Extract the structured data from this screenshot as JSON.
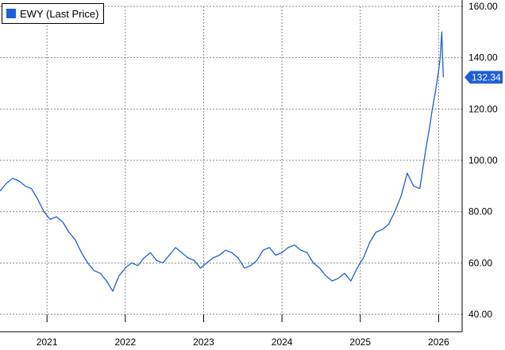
{
  "legend": {
    "label": "EWY (Last Price)",
    "color": "#1f5fd6"
  },
  "last_price": {
    "label": "132.34",
    "value": 132.34,
    "color": "#1f5fd6"
  },
  "chart_data": {
    "type": "line",
    "title": "",
    "xlabel": "",
    "ylabel": "",
    "ylim": [
      40,
      160
    ],
    "xlim": [
      2020.4,
      2026.3
    ],
    "grid": true,
    "y_axis_side": "right",
    "yticks": [
      40,
      60,
      80,
      100,
      120,
      140,
      160
    ],
    "ytick_labels": [
      "40.00",
      "60.00",
      "80.00",
      "100.00",
      "120.00",
      "140.00",
      "160.00"
    ],
    "xticks": [
      2021,
      2022,
      2023,
      2024,
      2025,
      2026
    ],
    "xtick_labels": [
      "2021",
      "2022",
      "2023",
      "2024",
      "2025",
      "2026"
    ],
    "legend_position": "top-left",
    "series": [
      {
        "name": "EWY (Last Price)",
        "color": "#1f5fd6",
        "x": [
          2020.4,
          2020.48,
          2020.56,
          2020.64,
          2020.72,
          2020.8,
          2020.88,
          2020.96,
          2021.04,
          2021.12,
          2021.2,
          2021.28,
          2021.36,
          2021.44,
          2021.52,
          2021.6,
          2021.68,
          2021.76,
          2021.84,
          2021.92,
          2022.0,
          2022.08,
          2022.16,
          2022.24,
          2022.32,
          2022.4,
          2022.48,
          2022.56,
          2022.64,
          2022.72,
          2022.8,
          2022.88,
          2022.96,
          2023.04,
          2023.12,
          2023.2,
          2023.28,
          2023.36,
          2023.44,
          2023.52,
          2023.6,
          2023.68,
          2023.76,
          2023.84,
          2023.92,
          2024.0,
          2024.08,
          2024.16,
          2024.24,
          2024.32,
          2024.4,
          2024.48,
          2024.56,
          2024.64,
          2024.72,
          2024.8,
          2024.88,
          2024.96,
          2025.04,
          2025.12,
          2025.2,
          2025.28,
          2025.36,
          2025.44,
          2025.52,
          2025.6,
          2025.68,
          2025.76,
          2025.84,
          2025.88,
          2025.92,
          2025.96,
          2026.0,
          2026.02,
          2026.04,
          2026.06
        ],
        "values": [
          88,
          91,
          93,
          92,
          90,
          89,
          85,
          80,
          77,
          78,
          76,
          72,
          69,
          64,
          60,
          57,
          56,
          53,
          49,
          55,
          58,
          60,
          59,
          62,
          64,
          61,
          60,
          63,
          66,
          64,
          62,
          61,
          58,
          60,
          62,
          63,
          65,
          64,
          62,
          58,
          59,
          61,
          65,
          66,
          63,
          64,
          66,
          67,
          65,
          64,
          60,
          58,
          55,
          53,
          54,
          56,
          53,
          58,
          62,
          68,
          72,
          73,
          75,
          80,
          86,
          95,
          90,
          89,
          105,
          112,
          120,
          127,
          135,
          140,
          150,
          132.34
        ]
      }
    ]
  }
}
